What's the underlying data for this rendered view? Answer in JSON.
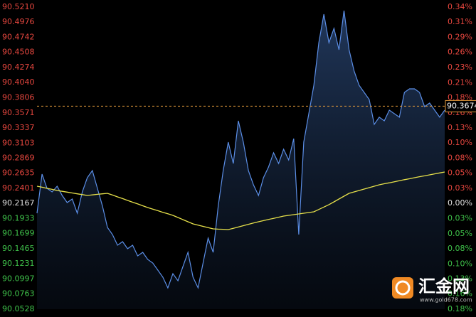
{
  "chart_data": {
    "type": "line",
    "ylim": [
      90.0528,
      90.521
    ],
    "yticks": [
      {
        "value": 90.521,
        "label": "90.5210"
      },
      90.4976,
      90.4742,
      90.4508,
      90.4274,
      {
        "value": 90.404,
        "label": "90.4040"
      },
      90.3806,
      90.3571,
      90.3337,
      90.3103,
      90.2869,
      90.2635,
      90.2401,
      90.2167,
      90.1933,
      90.1699,
      90.1465,
      90.1231,
      90.0997,
      90.0763,
      90.0528
    ],
    "reference": 90.2167,
    "y2lim": [
      -0.1816,
      0.3372
    ],
    "y2ticks": [
      {
        "value": 0.3372,
        "label": "0.34%"
      },
      {
        "value": 0.3113,
        "label": "0.31%"
      },
      {
        "value": 0.2853,
        "label": "0.29%"
      },
      {
        "value": 0.2594,
        "label": "0.26%"
      },
      {
        "value": 0.2335,
        "label": "0.23%"
      },
      {
        "value": 0.2075,
        "label": "0.21%"
      },
      {
        "value": 0.1816,
        "label": "0.18%"
      },
      {
        "value": 0.1556,
        "label": "0.16%"
      },
      {
        "value": 0.1297,
        "label": "0.13%"
      },
      {
        "value": 0.1038,
        "label": "0.10%"
      },
      {
        "value": 0.0778,
        "label": "0.08%"
      },
      {
        "value": 0.0519,
        "label": "0.05%"
      },
      {
        "value": 0.0259,
        "label": "0.03%"
      },
      {
        "value": 0,
        "label": "0.00%"
      },
      {
        "value": -0.0259,
        "label": "0.03%"
      },
      {
        "value": -0.0519,
        "label": "0.05%"
      },
      {
        "value": -0.0778,
        "label": "0.08%"
      },
      {
        "value": -0.1038,
        "label": "0.10%"
      },
      {
        "value": -0.1297,
        "label": "0.13%"
      },
      {
        "value": -0.1556,
        "label": "0.16%"
      },
      {
        "value": -0.1816,
        "label": "0.18%"
      }
    ],
    "grid": false,
    "up_color": "#e8473f",
    "down_color": "#3fc24a",
    "flat_color": "#e0e0e0",
    "last_price": 90.3674,
    "last_price_color": "#e39a3b",
    "series": [
      {
        "color": "#5b8ee6",
        "values": [
          90.2015,
          90.2621,
          90.2401,
          90.2346,
          90.2434,
          90.2291,
          90.2181,
          90.2236,
          90.2015,
          90.2346,
          90.2566,
          90.2676,
          90.2401,
          90.2126,
          90.1795,
          90.1685,
          90.152,
          90.1575,
          90.1465,
          90.152,
          90.1354,
          90.1409,
          90.1299,
          90.1244,
          90.1134,
          90.1024,
          90.0859,
          90.1079,
          90.0969,
          90.1189,
          90.1409,
          90.1024,
          90.0859,
          90.1244,
          90.163,
          90.1409,
          90.2126,
          90.2676,
          90.3117,
          90.2786,
          90.3447,
          90.3117,
          90.2676,
          90.2456,
          90.2291,
          90.2566,
          90.2731,
          90.2952,
          90.2786,
          90.3007,
          90.2842,
          90.3172,
          90.1685,
          90.3117,
          90.3558,
          90.3998,
          90.4659,
          90.51,
          90.4659,
          90.488,
          90.4549,
          90.5155,
          90.4549,
          90.4219,
          90.3998,
          90.3888,
          90.3778,
          90.3392,
          90.3503,
          90.3447,
          90.3613,
          90.3558,
          90.3503,
          90.3888,
          90.3943,
          90.3943,
          90.3888,
          90.3668,
          90.3723,
          90.3613,
          90.3503,
          90.3613
        ]
      },
      {
        "color": "#e6e04a",
        "values": [
          90.2434,
          90.2418,
          90.2401,
          90.2385,
          90.2368,
          90.2355,
          90.2342,
          90.2329,
          90.2316,
          90.2304,
          90.2291,
          90.2299,
          90.2308,
          90.2316,
          90.2324,
          90.2297,
          90.2269,
          90.2242,
          90.2214,
          90.2186,
          90.2159,
          90.2131,
          90.2103,
          90.2079,
          90.2055,
          90.203,
          90.2006,
          90.1982,
          90.1949,
          90.1916,
          90.1883,
          90.185,
          90.1831,
          90.1811,
          90.1792,
          90.1773,
          90.1769,
          90.1766,
          90.1762,
          90.1782,
          90.1802,
          90.1822,
          90.1843,
          90.1863,
          90.1883,
          90.1901,
          90.1918,
          90.1936,
          90.1953,
          90.1971,
          90.1982,
          90.1993,
          90.2004,
          90.2015,
          90.2026,
          90.2037,
          90.2074,
          90.2111,
          90.2148,
          90.2192,
          90.2236,
          90.228,
          90.2324,
          90.2346,
          90.2368,
          90.239,
          90.2412,
          90.2434,
          90.2456,
          90.2472,
          90.2487,
          90.2503,
          90.2519,
          90.2535,
          90.255,
          90.2566,
          90.2581,
          90.2595,
          90.261,
          90.2625,
          90.264,
          90.2654
        ]
      }
    ]
  },
  "watermark": {
    "name": "汇金网",
    "url": "www.gold678.com"
  }
}
